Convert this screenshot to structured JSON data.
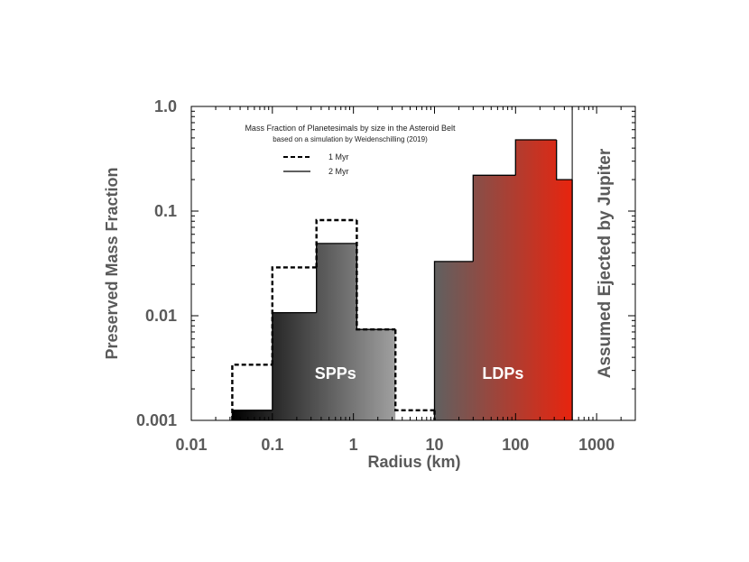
{
  "chart_data": {
    "type": "histogram",
    "title": "Mass Fraction of Planetesimals by size in the Asteroid Belt",
    "subtitle": "based on a simulation by Weidenschilling (2019)",
    "xlabel": "Radius (km)",
    "ylabel": "Preserved Mass Fraction",
    "xscale": "log",
    "yscale": "log",
    "xlim": [
      0.01,
      3000
    ],
    "ylim": [
      0.001,
      1.0
    ],
    "x_tick_labels": [
      {
        "value": 0.01,
        "label": "0.01"
      },
      {
        "value": 0.1,
        "label": "0.1"
      },
      {
        "value": 1,
        "label": "1"
      },
      {
        "value": 10,
        "label": "10"
      },
      {
        "value": 100,
        "label": "100"
      },
      {
        "value": 1000,
        "label": "1000"
      }
    ],
    "y_tick_labels": [
      {
        "value": 1.0,
        "label": "1.0"
      },
      {
        "value": 0.1,
        "label": "0.1"
      },
      {
        "value": 0.01,
        "label": "0.01"
      },
      {
        "value": 0.001,
        "label": "0.001"
      }
    ],
    "series": [
      {
        "name": "1 Myr",
        "style": "dashed",
        "bins": [
          {
            "x0": 0.032,
            "x1": 0.1,
            "value": 0.0034
          },
          {
            "x0": 0.1,
            "x1": 0.35,
            "value": 0.029
          },
          {
            "x0": 0.35,
            "x1": 1.1,
            "value": 0.082
          },
          {
            "x0": 1.1,
            "x1": 3.3,
            "value": 0.0074
          },
          {
            "x0": 3.3,
            "x1": 10,
            "value": 0.00125
          }
        ]
      },
      {
        "name": "2 Myr",
        "style": "solid",
        "bins": [
          {
            "x0": 0.032,
            "x1": 0.1,
            "value": 0.00125
          },
          {
            "x0": 0.1,
            "x1": 0.35,
            "value": 0.0107
          },
          {
            "x0": 0.35,
            "x1": 1.1,
            "value": 0.049
          },
          {
            "x0": 1.1,
            "x1": 3.3,
            "value": 0.0074
          },
          {
            "x0": 10,
            "x1": 30,
            "value": 0.033
          },
          {
            "x0": 30,
            "x1": 100,
            "value": 0.22
          },
          {
            "x0": 100,
            "x1": 320,
            "value": 0.48
          },
          {
            "x0": 320,
            "x1": 500,
            "value": 0.2
          }
        ]
      }
    ],
    "regions": [
      {
        "label": "SPPs",
        "x0": 0.032,
        "x1": 3.3,
        "label_x": 0.6,
        "label_y": 0.0028,
        "gradient": [
          "#000000",
          "#a0a0a0"
        ]
      },
      {
        "label": "LDPs",
        "x0": 10,
        "x1": 500,
        "label_x": 70,
        "label_y": 0.0028,
        "gradient": [
          "#606060",
          "#e8240e"
        ]
      }
    ],
    "cutoff": {
      "x": 500,
      "label": "Assumed Ejected by Jupiter"
    },
    "legend": [
      {
        "label": "1 Myr",
        "style": "dashed"
      },
      {
        "label": "2 Myr",
        "style": "solid"
      }
    ]
  }
}
